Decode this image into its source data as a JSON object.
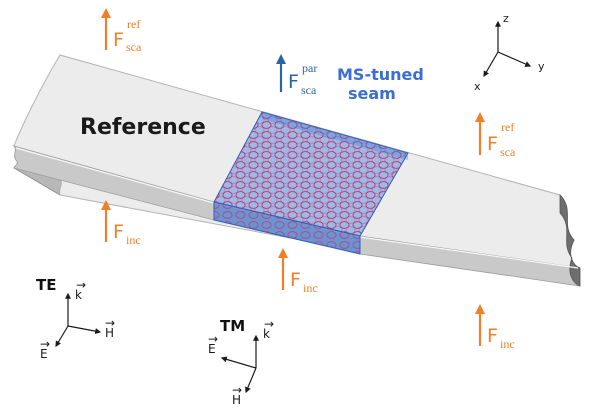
{
  "colors": {
    "force_orange": "#f07f2a",
    "force_blue": "#2a64a8",
    "seam_blue": "#3d7fd6",
    "seam_label": "#3a6fcf",
    "ring_red": "#c0306a",
    "slab_top": "#ececec",
    "slab_side": "#c9c9c9",
    "slab_end": "#9a9a9a"
  },
  "labels": {
    "reference": "Reference",
    "seam_line1": "MS-tuned",
    "seam_line2": "seam"
  },
  "forces": {
    "f_main": "F",
    "sca_sub": "sca",
    "inc_sub": "inc",
    "ref_sup": "ref",
    "par_sup": "par"
  },
  "axes": {
    "x": "x",
    "y": "y",
    "z": "z"
  },
  "te": {
    "title": "TE",
    "k": "k",
    "h": "H",
    "e": "E"
  },
  "tm": {
    "title": "TM",
    "k": "k",
    "e": "E",
    "h": "H"
  }
}
